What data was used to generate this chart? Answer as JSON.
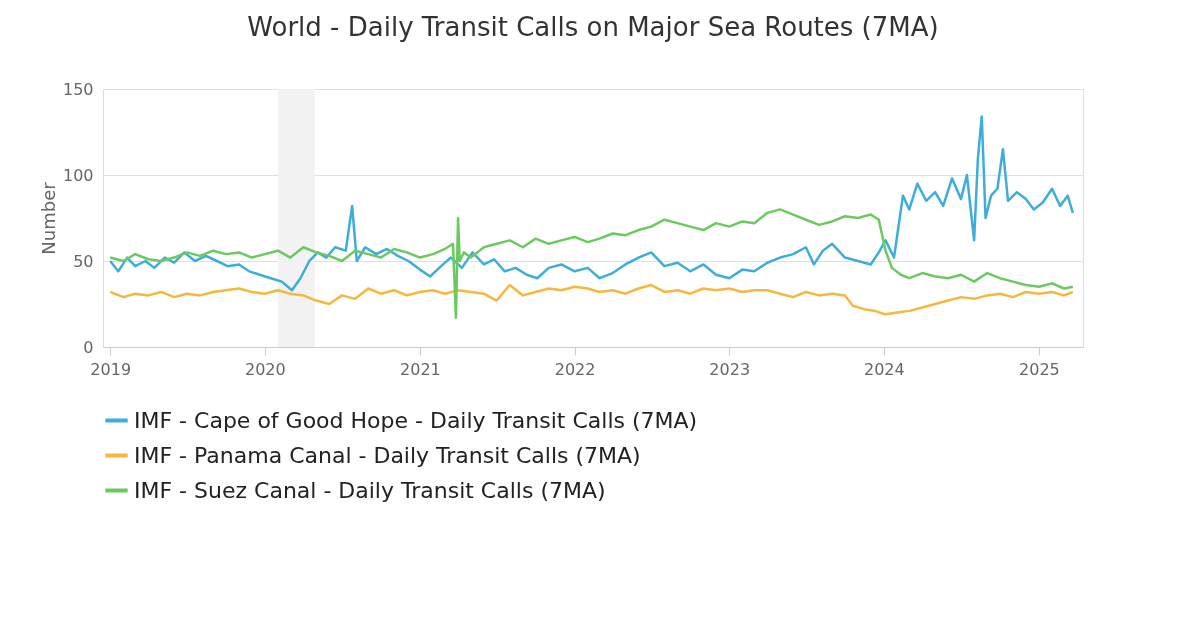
{
  "chart_data": {
    "type": "line",
    "title": "World - Daily Transit Calls on Major Sea Routes (7MA)",
    "ylabel": "Number",
    "xlim": [
      "2018-12-15",
      "2025-04-15"
    ],
    "xticks": [
      "2019",
      "2020",
      "2021",
      "2022",
      "2023",
      "2024",
      "2025"
    ],
    "ylim": [
      0,
      150
    ],
    "yticks": [
      0,
      50,
      100,
      150
    ],
    "grid": "y",
    "legend": "bottom",
    "line_style": "solid",
    "bands": [
      {
        "axis": "x",
        "from": "2020-02-01",
        "to": "2020-04-28",
        "color": "#f2f2f2"
      }
    ],
    "series": [
      {
        "name": "IMF - Cape of Good Hope - Daily Transit Calls (7MA)",
        "color": "#3eadd9",
        "x": [
          "2019-01-01",
          "2019-01-20",
          "2019-02-10",
          "2019-03-01",
          "2019-03-25",
          "2019-04-15",
          "2019-05-10",
          "2019-06-01",
          "2019-06-25",
          "2019-07-20",
          "2019-08-15",
          "2019-09-10",
          "2019-10-05",
          "2019-11-01",
          "2019-11-25",
          "2019-12-20",
          "2020-01-15",
          "2020-02-10",
          "2020-03-05",
          "2020-03-25",
          "2020-04-15",
          "2020-05-05",
          "2020-05-25",
          "2020-06-15",
          "2020-07-10",
          "2020-07-25",
          "2020-08-05",
          "2020-08-25",
          "2020-09-20",
          "2020-10-15",
          "2020-11-10",
          "2020-12-05",
          "2021-01-01",
          "2021-01-25",
          "2021-02-20",
          "2021-03-15",
          "2021-04-10",
          "2021-05-05",
          "2021-06-01",
          "2021-06-25",
          "2021-07-20",
          "2021-08-15",
          "2021-09-10",
          "2021-10-05",
          "2021-11-01",
          "2021-12-01",
          "2022-01-01",
          "2022-02-01",
          "2022-03-01",
          "2022-04-01",
          "2022-05-01",
          "2022-06-01",
          "2022-07-01",
          "2022-08-01",
          "2022-09-01",
          "2022-10-01",
          "2022-11-01",
          "2022-12-01",
          "2023-01-01",
          "2023-02-01",
          "2023-03-01",
          "2023-04-01",
          "2023-05-01",
          "2023-06-01",
          "2023-07-01",
          "2023-07-20",
          "2023-08-10",
          "2023-09-01",
          "2023-10-01",
          "2023-11-01",
          "2023-12-01",
          "2023-12-20",
          "2024-01-05",
          "2024-01-25",
          "2024-02-15",
          "2024-03-01",
          "2024-03-20",
          "2024-04-10",
          "2024-05-01",
          "2024-05-20",
          "2024-06-10",
          "2024-07-01",
          "2024-07-15",
          "2024-08-01",
          "2024-08-10",
          "2024-08-19",
          "2024-08-28",
          "2024-09-10",
          "2024-09-25",
          "2024-10-08",
          "2024-10-20",
          "2024-11-10",
          "2024-12-01",
          "2024-12-20",
          "2025-01-10",
          "2025-02-01",
          "2025-02-20",
          "2025-03-10",
          "2025-03-22"
        ],
        "values": [
          50,
          44,
          52,
          47,
          50,
          46,
          52,
          49,
          55,
          50,
          53,
          50,
          47,
          48,
          44,
          42,
          40,
          38,
          33,
          40,
          50,
          55,
          52,
          58,
          56,
          82,
          50,
          58,
          54,
          57,
          53,
          50,
          45,
          41,
          47,
          52,
          46,
          55,
          48,
          51,
          44,
          46,
          42,
          40,
          46,
          48,
          44,
          46,
          40,
          43,
          48,
          52,
          55,
          47,
          49,
          44,
          48,
          42,
          40,
          45,
          44,
          49,
          52,
          54,
          58,
          48,
          56,
          60,
          52,
          50,
          48,
          55,
          62,
          52,
          88,
          80,
          95,
          85,
          90,
          82,
          98,
          86,
          100,
          62,
          110,
          134,
          75,
          88,
          92,
          115,
          85,
          90,
          86,
          80,
          84,
          92,
          82,
          88,
          78
        ]
      },
      {
        "name": "IMF - Panama Canal - Daily Transit Calls (7MA)",
        "color": "#f5b83d",
        "x": [
          "2019-01-01",
          "2019-02-01",
          "2019-03-01",
          "2019-04-01",
          "2019-05-01",
          "2019-06-01",
          "2019-07-01",
          "2019-08-01",
          "2019-09-01",
          "2019-10-01",
          "2019-11-01",
          "2019-12-01",
          "2020-01-01",
          "2020-02-01",
          "2020-03-01",
          "2020-04-01",
          "2020-05-01",
          "2020-06-01",
          "2020-07-01",
          "2020-08-01",
          "2020-09-01",
          "2020-10-01",
          "2020-11-01",
          "2020-12-01",
          "2021-01-01",
          "2021-02-01",
          "2021-03-01",
          "2021-04-01",
          "2021-05-01",
          "2021-06-01",
          "2021-07-01",
          "2021-08-01",
          "2021-09-01",
          "2021-10-01",
          "2021-11-01",
          "2021-12-01",
          "2022-01-01",
          "2022-02-01",
          "2022-03-01",
          "2022-04-01",
          "2022-05-01",
          "2022-06-01",
          "2022-07-01",
          "2022-08-01",
          "2022-09-01",
          "2022-10-01",
          "2022-11-01",
          "2022-12-01",
          "2023-01-01",
          "2023-02-01",
          "2023-03-01",
          "2023-04-01",
          "2023-05-01",
          "2023-06-01",
          "2023-07-01",
          "2023-08-01",
          "2023-09-01",
          "2023-10-01",
          "2023-10-20",
          "2023-11-15",
          "2023-12-10",
          "2024-01-05",
          "2024-02-01",
          "2024-03-01",
          "2024-04-01",
          "2024-05-01",
          "2024-06-01",
          "2024-07-01",
          "2024-08-01",
          "2024-09-01",
          "2024-10-01",
          "2024-11-01",
          "2024-12-01",
          "2025-01-01",
          "2025-02-01",
          "2025-03-01",
          "2025-03-22"
        ],
        "values": [
          32,
          29,
          31,
          30,
          32,
          29,
          31,
          30,
          32,
          33,
          34,
          32,
          31,
          33,
          31,
          30,
          27,
          25,
          30,
          28,
          34,
          31,
          33,
          30,
          32,
          33,
          31,
          33,
          32,
          31,
          27,
          36,
          30,
          32,
          34,
          33,
          35,
          34,
          32,
          33,
          31,
          34,
          36,
          32,
          33,
          31,
          34,
          33,
          34,
          32,
          33,
          33,
          31,
          29,
          32,
          30,
          31,
          30,
          24,
          22,
          21,
          19,
          20,
          21,
          23,
          25,
          27,
          29,
          28,
          30,
          31,
          29,
          32,
          31,
          32,
          30,
          32
        ]
      },
      {
        "name": "IMF - Suez Canal - Daily Transit Calls (7MA)",
        "color": "#6cc960",
        "x": [
          "2019-01-01",
          "2019-02-01",
          "2019-03-01",
          "2019-04-01",
          "2019-05-01",
          "2019-06-01",
          "2019-07-01",
          "2019-08-01",
          "2019-09-01",
          "2019-10-01",
          "2019-11-01",
          "2019-12-01",
          "2020-01-01",
          "2020-02-01",
          "2020-03-01",
          "2020-04-01",
          "2020-05-01",
          "2020-06-01",
          "2020-07-01",
          "2020-08-01",
          "2020-09-01",
          "2020-10-01",
          "2020-11-01",
          "2020-12-01",
          "2021-01-01",
          "2021-02-01",
          "2021-03-01",
          "2021-03-20",
          "2021-03-27",
          "2021-04-01",
          "2021-04-05",
          "2021-04-15",
          "2021-05-01",
          "2021-06-01",
          "2021-07-01",
          "2021-08-01",
          "2021-09-01",
          "2021-10-01",
          "2021-11-01",
          "2021-12-01",
          "2022-01-01",
          "2022-02-01",
          "2022-03-01",
          "2022-04-01",
          "2022-05-01",
          "2022-06-01",
          "2022-07-01",
          "2022-08-01",
          "2022-09-01",
          "2022-10-01",
          "2022-11-01",
          "2022-12-01",
          "2023-01-01",
          "2023-02-01",
          "2023-03-01",
          "2023-04-01",
          "2023-05-01",
          "2023-06-01",
          "2023-07-01",
          "2023-08-01",
          "2023-09-01",
          "2023-10-01",
          "2023-11-01",
          "2023-12-01",
          "2023-12-20",
          "2024-01-05",
          "2024-01-20",
          "2024-02-10",
          "2024-03-01",
          "2024-04-01",
          "2024-05-01",
          "2024-06-01",
          "2024-07-01",
          "2024-08-01",
          "2024-09-01",
          "2024-10-01",
          "2024-11-01",
          "2024-12-01",
          "2025-01-01",
          "2025-02-01",
          "2025-03-01",
          "2025-03-22"
        ],
        "values": [
          52,
          50,
          54,
          51,
          50,
          52,
          55,
          53,
          56,
          54,
          55,
          52,
          54,
          56,
          52,
          58,
          55,
          53,
          50,
          56,
          54,
          52,
          57,
          55,
          52,
          54,
          57,
          60,
          17,
          75,
          50,
          55,
          52,
          58,
          60,
          62,
          58,
          63,
          60,
          62,
          64,
          61,
          63,
          66,
          65,
          68,
          70,
          74,
          72,
          70,
          68,
          72,
          70,
          73,
          72,
          78,
          80,
          77,
          74,
          71,
          73,
          76,
          75,
          77,
          74,
          56,
          46,
          42,
          40,
          43,
          41,
          40,
          42,
          38,
          43,
          40,
          38,
          36,
          35,
          37,
          34,
          35
        ]
      }
    ]
  }
}
